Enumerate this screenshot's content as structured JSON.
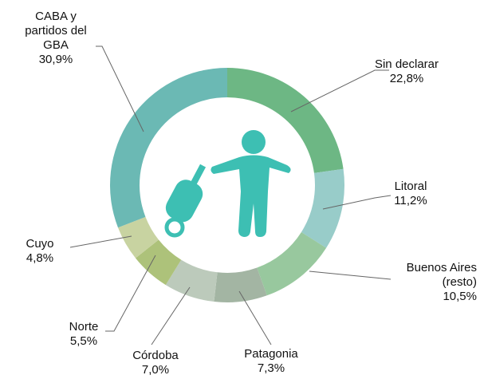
{
  "chart_data": {
    "type": "donut",
    "categories": [
      "Sin declarar",
      "Litoral",
      "Buenos Aires (resto)",
      "Patagonia",
      "Córdoba",
      "Norte",
      "Cuyo",
      "CABA y partidos del GBA"
    ],
    "values": [
      22.8,
      11.2,
      10.5,
      7.3,
      7.0,
      5.5,
      4.8,
      30.9
    ],
    "value_labels": [
      "22,8%",
      "11,2%",
      "10,5%",
      "7,3%",
      "7,0%",
      "5,5%",
      "4,8%",
      "30,9%"
    ],
    "colors": [
      "#6db784",
      "#98ccc9",
      "#98c89e",
      "#a3b5a3",
      "#bccabb",
      "#adc27a",
      "#c8d3a1",
      "#6bb9b4"
    ]
  }
}
